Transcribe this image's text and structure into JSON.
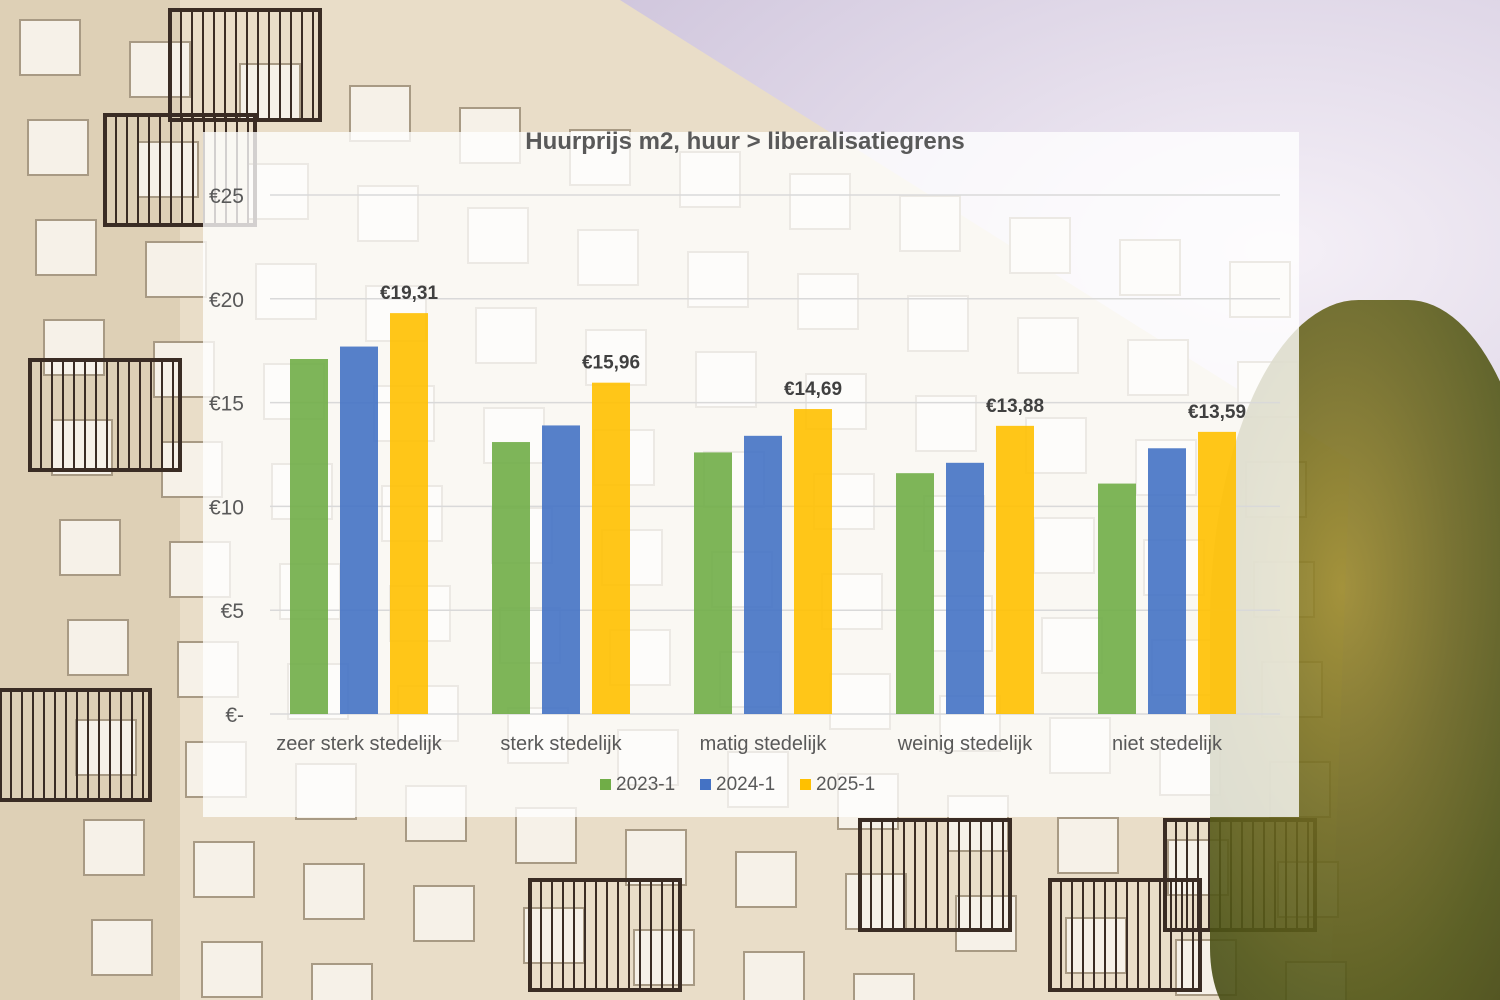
{
  "chart_data": {
    "type": "bar",
    "title": "Huurprijs m2, huur > liberalisatiegrens",
    "categories": [
      "zeer sterk stedelijk",
      "sterk stedelijk",
      "matig stedelijk",
      "weinig stedelijk",
      "niet stedelijk"
    ],
    "series": [
      {
        "name": "2023-1",
        "color": "#70ad47",
        "values": [
          17.1,
          13.1,
          12.6,
          11.6,
          11.1
        ]
      },
      {
        "name": "2024-1",
        "color": "#4472c4",
        "values": [
          17.7,
          13.9,
          13.4,
          12.1,
          12.8
        ]
      },
      {
        "name": "2025-1",
        "color": "#ffc000",
        "values": [
          19.31,
          15.96,
          14.69,
          13.88,
          13.59
        ]
      }
    ],
    "data_labels": [
      "€19,31",
      "€15,96",
      "€14,69",
      "€13,88",
      "€13,59"
    ],
    "y_ticks": [
      {
        "value": 0,
        "label": "€-"
      },
      {
        "value": 5,
        "label": "€5"
      },
      {
        "value": 10,
        "label": "€10"
      },
      {
        "value": 15,
        "label": "€15"
      },
      {
        "value": 20,
        "label": "€20"
      },
      {
        "value": 25,
        "label": "€25"
      }
    ],
    "ylim": [
      0,
      25
    ],
    "grid": true,
    "legend_position": "bottom"
  }
}
